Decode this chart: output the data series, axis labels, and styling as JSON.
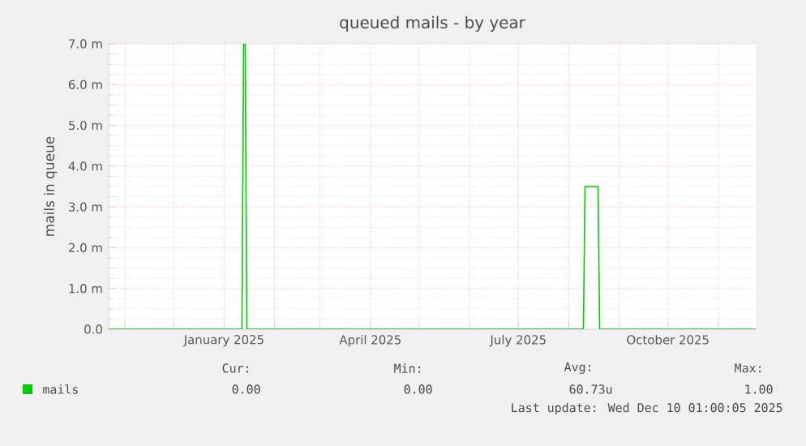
{
  "chart_data": {
    "type": "line",
    "title": "queued mails - by year",
    "ylabel": "mails in queue",
    "xlim": [
      "2024-10-22",
      "2025-11-24"
    ],
    "xticks": [
      {
        "value": "2024-11-01",
        "label": null
      },
      {
        "value": "2024-12-01",
        "label": null
      },
      {
        "value": "2025-01-01",
        "label": "January 2025"
      },
      {
        "value": "2025-02-01",
        "label": null
      },
      {
        "value": "2025-03-01",
        "label": null
      },
      {
        "value": "2025-04-01",
        "label": "April 2025"
      },
      {
        "value": "2025-05-01",
        "label": null
      },
      {
        "value": "2025-06-01",
        "label": null
      },
      {
        "value": "2025-07-01",
        "label": "July 2025"
      },
      {
        "value": "2025-08-01",
        "label": null
      },
      {
        "value": "2025-09-01",
        "label": null
      },
      {
        "value": "2025-10-01",
        "label": "October 2025"
      },
      {
        "value": "2025-11-01",
        "label": null
      }
    ],
    "ylim": [
      0,
      7
    ],
    "yticks": [
      {
        "value": 0,
        "label": "0.0"
      },
      {
        "value": 1,
        "label": "1.0 m"
      },
      {
        "value": 2,
        "label": "2.0 m"
      },
      {
        "value": 3,
        "label": "3.0 m"
      },
      {
        "value": 4,
        "label": "4.0 m"
      },
      {
        "value": 5,
        "label": "5.0 m"
      },
      {
        "value": 6,
        "label": "6.0 m"
      },
      {
        "value": 7,
        "label": "7.0 m"
      }
    ],
    "grid": true,
    "legend": "bottom",
    "line_style": "solid",
    "marker": "none",
    "series": [
      {
        "name": "mails",
        "color": "#00cc00",
        "x": [
          "2024-10-22",
          "2025-01-12",
          "2025-01-13",
          "2025-01-14",
          "2025-01-15",
          "2025-08-10",
          "2025-08-11",
          "2025-08-19",
          "2025-08-20",
          "2025-11-24"
        ],
        "values": [
          0,
          0,
          7,
          7,
          0,
          0,
          3.5,
          3.5,
          0,
          0
        ]
      }
    ],
    "annotations": [
      "Cur:",
      "Min:",
      "Avg:",
      "Max:",
      "0.00",
      "0.00",
      "60.73u",
      "1.00",
      "Last update: Wed Dec 10 01:00:05 2025"
    ]
  }
}
